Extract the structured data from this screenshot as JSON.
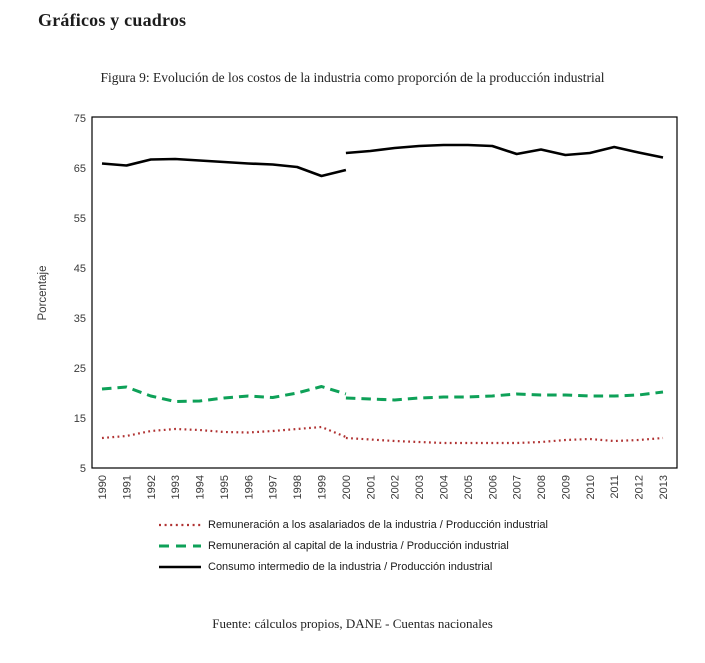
{
  "header": {
    "title": "Gráficos y cuadros"
  },
  "figure": {
    "caption": "Figura 9: Evolución de los costos de la industria como proporción de la producción industrial",
    "source": "Fuente: cálculos propios, DANE - Cuentas nacionales"
  },
  "chart_data": {
    "type": "line",
    "title": "Figura 9: Evolución de los costos de la industria como proporción de la producción industrial",
    "xlabel": "",
    "ylabel": "Porcentaje",
    "ylim": [
      5,
      75
    ],
    "yticks": [
      5,
      15,
      25,
      35,
      45,
      55,
      65,
      75
    ],
    "x_years": [
      1990,
      1991,
      1992,
      1993,
      1994,
      1995,
      1996,
      1997,
      1998,
      1999,
      2000,
      2001,
      2002,
      2003,
      2004,
      2005,
      2006,
      2007,
      2008,
      2009,
      2010,
      2011,
      2012,
      2013
    ],
    "grid": false,
    "legend_position": "bottom-left",
    "series": [
      {
        "name": "Remuneración a los asalariados de la industria / Producción industrial",
        "style": "dotted",
        "color": "#b03232",
        "segments": [
          {
            "start_year": 1990,
            "values": [
              11.0,
              11.4,
              12.4,
              12.8,
              12.6,
              12.2,
              12.1,
              12.4,
              12.8,
              13.2,
              11.2
            ]
          },
          {
            "start_year": 2000,
            "values": [
              11.0,
              10.7,
              10.4,
              10.2,
              10.0,
              10.0,
              10.0,
              10.0,
              10.2,
              10.6,
              10.8,
              10.4,
              10.6,
              11.0
            ]
          }
        ]
      },
      {
        "name": "Remuneración al capital de la industria / Producción industrial",
        "style": "dashed",
        "color": "#0ea158",
        "segments": [
          {
            "start_year": 1990,
            "values": [
              20.8,
              21.2,
              19.4,
              18.3,
              18.4,
              19.0,
              19.4,
              19.1,
              20.0,
              21.3,
              19.8
            ]
          },
          {
            "start_year": 2000,
            "values": [
              19.0,
              18.8,
              18.6,
              19.0,
              19.2,
              19.2,
              19.4,
              19.8,
              19.6,
              19.6,
              19.4,
              19.4,
              19.6,
              20.2
            ]
          }
        ]
      },
      {
        "name": "Consumo intermedio de la industria / Producción industrial",
        "style": "solid",
        "color": "#000000",
        "segments": [
          {
            "start_year": 1990,
            "values": [
              65.9,
              65.5,
              66.7,
              66.8,
              66.5,
              66.2,
              65.9,
              65.7,
              65.2,
              63.4,
              64.6
            ]
          },
          {
            "start_year": 2000,
            "values": [
              68.0,
              68.4,
              69.0,
              69.4,
              69.6,
              69.6,
              69.4,
              67.8,
              68.7,
              67.6,
              68.0,
              69.2,
              68.1,
              67.1
            ]
          }
        ]
      }
    ]
  }
}
